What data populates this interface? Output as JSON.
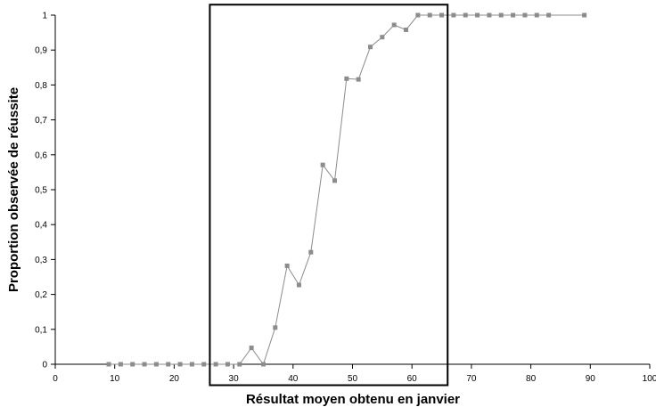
{
  "chart_data": {
    "type": "line",
    "title": "",
    "xlabel": "Résultat moyen obtenu en janvier",
    "ylabel": "Proportion observée de réussite",
    "xlim": [
      0,
      100
    ],
    "ylim": [
      0,
      1
    ],
    "x_ticks": [
      "0",
      "10",
      "20",
      "30",
      "40",
      "50",
      "60",
      "70",
      "80",
      "90",
      "100"
    ],
    "y_ticks": [
      "0",
      "0,1",
      "0,2",
      "0,3",
      "0,4",
      "0,5",
      "0,6",
      "0,7",
      "0,8",
      "0,9",
      "1"
    ],
    "grid": false,
    "legend": "none",
    "series": [
      {
        "color": "#8c8c8c",
        "marker": "square",
        "x": [
          9,
          11,
          13,
          15,
          17,
          19,
          21,
          23,
          25,
          27,
          29,
          31,
          33,
          35,
          37,
          39,
          41,
          43,
          45,
          47,
          49,
          51,
          53,
          55,
          57,
          59,
          61,
          63,
          65,
          67,
          69,
          71,
          73,
          75,
          77,
          79,
          81,
          83,
          89
        ],
        "y": [
          0,
          0,
          0,
          0,
          0,
          0,
          0,
          0,
          0,
          0,
          0,
          0,
          0.047,
          0,
          0.105,
          0.282,
          0.227,
          0.321,
          0.571,
          0.526,
          0.818,
          0.816,
          0.909,
          0.937,
          0.972,
          0.958,
          1,
          1,
          1,
          1,
          1,
          1,
          1,
          1,
          1,
          1,
          1,
          1,
          1
        ]
      }
    ],
    "highlight_box": {
      "x_range": [
        26,
        66
      ],
      "y_range": [
        -0.06,
        1.03
      ]
    }
  }
}
